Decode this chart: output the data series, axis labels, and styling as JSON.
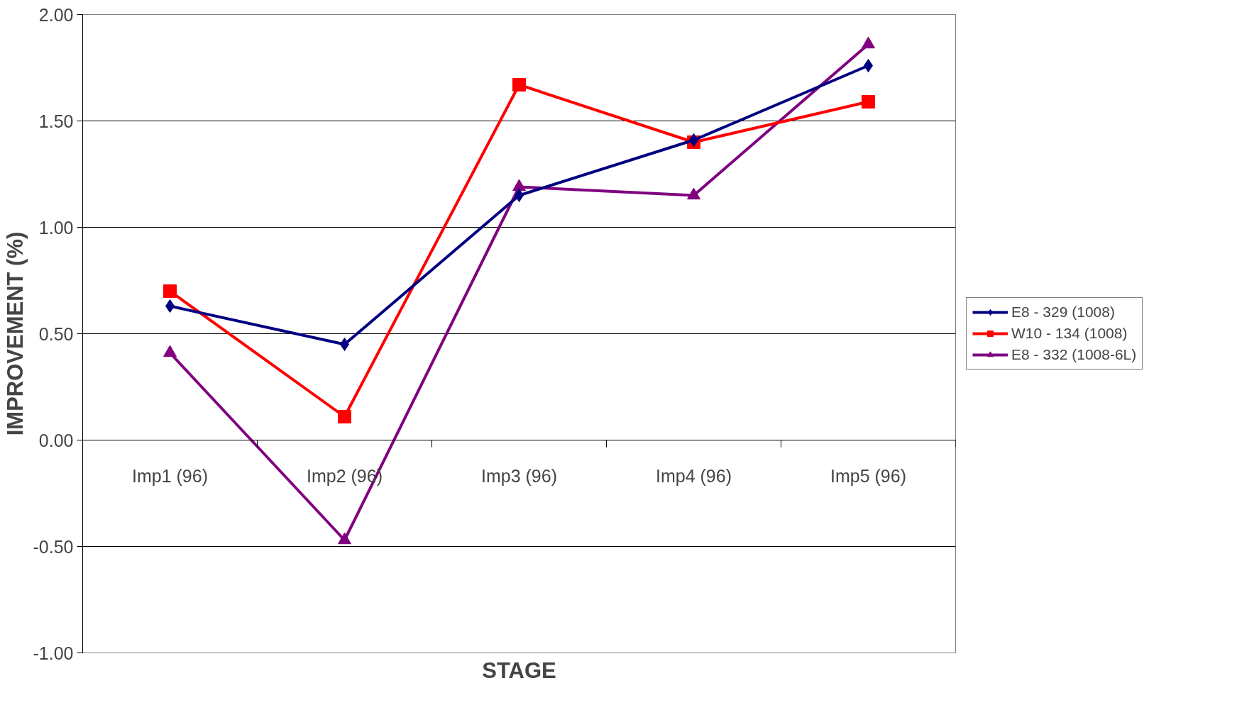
{
  "chart_data": {
    "type": "line",
    "xlabel": "STAGE",
    "ylabel": "IMPROVEMENT (%)",
    "categories": [
      "Imp1 (96)",
      "Imp2 (96)",
      "Imp3 (96)",
      "Imp4 (96)",
      "Imp5 (96)"
    ],
    "series": [
      {
        "name": "E8 - 329 (1008)",
        "color": "#000080",
        "marker": "diamond",
        "values": [
          0.63,
          0.45,
          1.15,
          1.41,
          1.76
        ]
      },
      {
        "name": "W10 - 134 (1008)",
        "color": "#ff0000",
        "marker": "square",
        "values": [
          0.7,
          0.11,
          1.67,
          1.4,
          1.59
        ]
      },
      {
        "name": "E8 - 332 (1008-6L)",
        "color": "#800080",
        "marker": "triangle",
        "values": [
          0.41,
          -0.47,
          1.19,
          1.15,
          1.86
        ]
      }
    ],
    "ylim": [
      -1.0,
      2.0
    ],
    "yticks": [
      {
        "value": -1.0,
        "label": "-1.00"
      },
      {
        "value": -0.5,
        "label": "-0.50"
      },
      {
        "value": 0.0,
        "label": "0.00"
      },
      {
        "value": 0.5,
        "label": "0.50"
      },
      {
        "value": 1.0,
        "label": "1.00"
      },
      {
        "value": 1.5,
        "label": "1.50"
      },
      {
        "value": 2.0,
        "label": "2.00"
      }
    ],
    "grid": "y",
    "legend": "right",
    "line_style": "solid"
  }
}
